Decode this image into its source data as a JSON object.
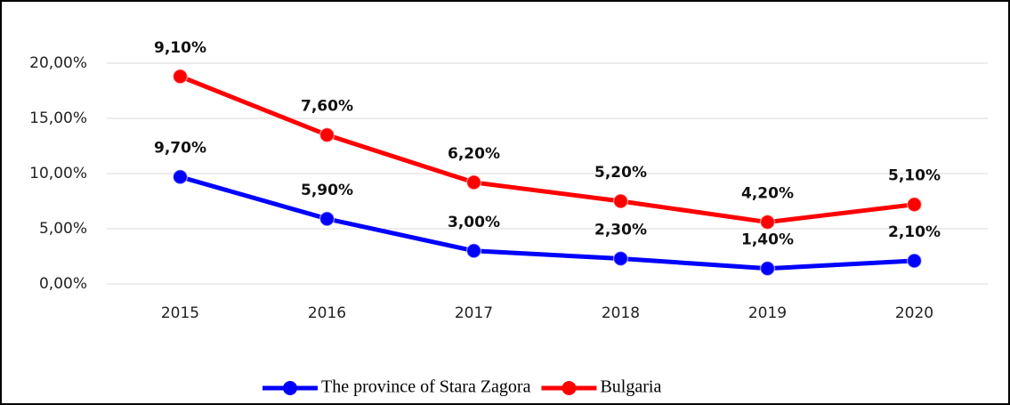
{
  "chart_data": {
    "type": "line",
    "stacked": true,
    "categories": [
      "2015",
      "2016",
      "2017",
      "2018",
      "2019",
      "2020"
    ],
    "series": [
      {
        "name": "The province of Stara Zagora",
        "color": "#0000ff",
        "values": [
          9.7,
          5.9,
          3.0,
          2.3,
          1.4,
          2.1
        ],
        "value_labels": [
          "9,70%",
          "5,90%",
          "3,00%",
          "2,30%",
          "1,40%",
          "2,10%"
        ]
      },
      {
        "name": "Bulgaria",
        "color": "#ff0000",
        "values": [
          9.1,
          7.6,
          6.2,
          5.2,
          4.2,
          5.1
        ],
        "value_labels": [
          "9,10%",
          "7,60%",
          "6,20%",
          "5,20%",
          "4,20%",
          "5,10%"
        ]
      }
    ],
    "ylim": [
      0,
      20
    ],
    "yticks": [
      {
        "value": 0,
        "label": "0,00%"
      },
      {
        "value": 5,
        "label": "5,00%"
      },
      {
        "value": 10,
        "label": "10,00%"
      },
      {
        "value": 15,
        "label": "15,00%"
      },
      {
        "value": 20,
        "label": "20,00%"
      }
    ],
    "grid": true,
    "legend": "bottom"
  }
}
